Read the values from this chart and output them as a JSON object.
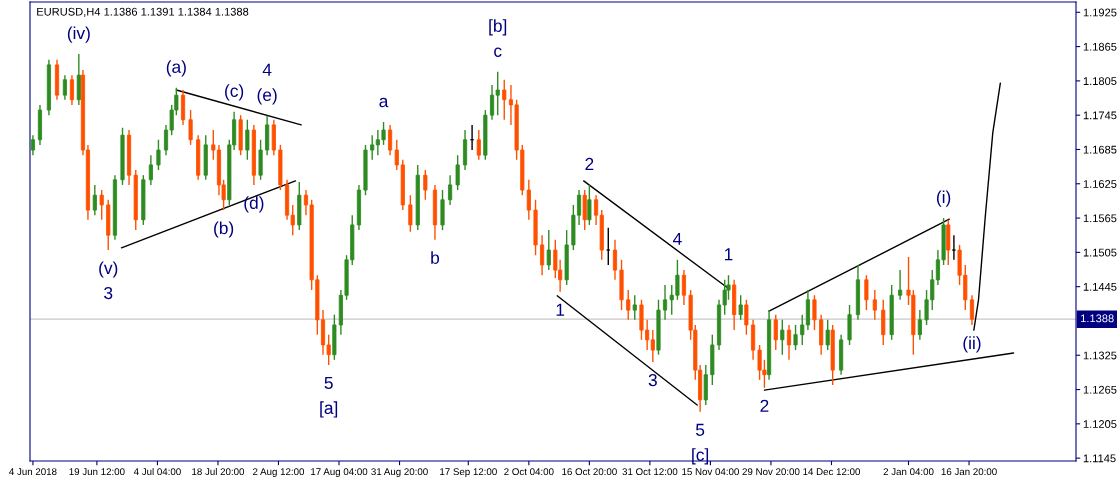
{
  "chart_data": {
    "type": "candlestick",
    "title": "EURUSD,H4 1.1386 1.1391 1.1384 1.1388",
    "xlim": [
      "2018-06-03T07:00",
      "2019-02-11T18:00"
    ],
    "ylim": [
      1.114,
      1.1943
    ],
    "xticks": [
      {
        "value": "2018-06-04T00:00",
        "label": "4 Jun 2018"
      },
      {
        "value": "2018-06-19T12:00",
        "label": "19 Jun 12:00"
      },
      {
        "value": "2018-07-04T04:00",
        "label": "4 Jul 04:00"
      },
      {
        "value": "2018-07-18T20:00",
        "label": "18 Jul 20:00"
      },
      {
        "value": "2018-08-02T12:00",
        "label": "2 Aug 12:00"
      },
      {
        "value": "2018-08-17T04:00",
        "label": "17 Aug 04:00"
      },
      {
        "value": "2018-08-31T20:00",
        "label": "31 Aug 20:00"
      },
      {
        "value": "2018-09-17T12:00",
        "label": "17 Sep 12:00"
      },
      {
        "value": "2018-10-02T04:00",
        "label": "2 Oct 04:00"
      },
      {
        "value": "2018-10-16T20:00",
        "label": "16 Oct 20:00"
      },
      {
        "value": "2018-10-31T12:00",
        "label": "31 Oct 12:00"
      },
      {
        "value": "2018-11-15T04:00",
        "label": "15 Nov 04:00"
      },
      {
        "value": "2018-11-29T20:00",
        "label": "29 Nov 20:00"
      },
      {
        "value": "2018-12-14T12:00",
        "label": "14 Dec 12:00"
      },
      {
        "value": "2019-01-02T04:00",
        "label": "2 Jan 04:00"
      },
      {
        "value": "2019-01-16T20:00",
        "label": "16 Jan 20:00"
      }
    ],
    "yticks": [
      1.1145,
      1.1205,
      1.1265,
      1.1325,
      1.1445,
      1.1505,
      1.1565,
      1.1625,
      1.1685,
      1.1745,
      1.1805,
      1.1865,
      1.1925
    ],
    "x": [
      "2018-06-04T00:00",
      "2018-06-05T17:00",
      "2018-06-07T21:00",
      "2018-06-09T20:00",
      "2018-06-11T18:00",
      "2018-06-13T11:00",
      "2018-06-15T03:00",
      "2018-06-16T03:00",
      "2018-06-17T08:00",
      "2018-06-19T00:00",
      "2018-06-20T16:00",
      "2018-06-22T06:00",
      "2018-06-23T21:00",
      "2018-06-25T17:00",
      "2018-06-27T07:00",
      "2018-06-28T22:00",
      "2018-06-30T18:00",
      "2018-07-02T14:00",
      "2018-07-04T10:00",
      "2018-07-06T06:00",
      "2018-07-07T15:00",
      "2018-07-08T18:00",
      "2018-07-10T09:00",
      "2018-07-12T05:00",
      "2018-07-14T01:00",
      "2018-07-15T21:00",
      "2018-07-17T17:00",
      "2018-07-19T02:00",
      "2018-07-20T05:00",
      "2018-07-21T14:00",
      "2018-07-22T18:00",
      "2018-07-24T08:00",
      "2018-07-25T23:00",
      "2018-07-27T13:00",
      "2018-07-29T04:00",
      "2018-07-30T18:00",
      "2018-08-01T09:00",
      "2018-08-02T23:00",
      "2018-08-04T14:00",
      "2018-08-05T23:00",
      "2018-08-07T13:00",
      "2018-08-09T04:00",
      "2018-08-10T13:00",
      "2018-08-11T22:00",
      "2018-08-13T07:00",
      "2018-08-14T16:00",
      "2018-08-16T01:00",
      "2018-08-17T15:00",
      "2018-08-19T00:00",
      "2018-08-20T09:00",
      "2018-08-22T00:00",
      "2018-08-23T14:00",
      "2018-08-25T05:00",
      "2018-08-26T14:00",
      "2018-08-27T23:00",
      "2018-08-29T13:00",
      "2018-08-31T04:00",
      "2018-09-01T15:00",
      "2018-09-03T11:00",
      "2018-09-05T06:00",
      "2018-09-07T02:00",
      "2018-09-09T10:00",
      "2018-09-11T06:00",
      "2018-09-13T02:00",
      "2018-09-14T22:00",
      "2018-09-16T17:00",
      "2018-09-18T10:00",
      "2018-09-20T01:00",
      "2018-09-21T15:00",
      "2018-09-23T06:00",
      "2018-09-24T15:00",
      "2018-09-26T05:00",
      "2018-09-27T20:00",
      "2018-09-29T05:00",
      "2018-09-30T14:00",
      "2018-10-02T04:00",
      "2018-10-03T19:00",
      "2018-10-05T09:00",
      "2018-10-07T00:00",
      "2018-10-08T14:00",
      "2018-10-09T18:00",
      "2018-10-11T08:00",
      "2018-10-12T23:00",
      "2018-10-14T08:00",
      "2018-10-15T17:00",
      "2018-10-16T20:00",
      "2018-10-18T11:00",
      "2018-10-19T20:00",
      "2018-10-21T10:00",
      "2018-10-23T01:00",
      "2018-10-24T15:00",
      "2018-10-26T06:00",
      "2018-10-27T20:00",
      "2018-10-29T11:00",
      "2018-10-30T20:00",
      "2018-11-01T05:00",
      "2018-11-02T14:00",
      "2018-11-04T04:00",
      "2018-11-05T19:00",
      "2018-11-07T04:00",
      "2018-11-08T18:00",
      "2018-11-10T09:00",
      "2018-11-11T12:00",
      "2018-11-12T16:00",
      "2018-11-14T01:00",
      "2018-11-15T15:00",
      "2018-11-17T06:00",
      "2018-11-18T15:00",
      "2018-11-19T13:00",
      "2018-11-20T22:00",
      "2018-11-22T12:00",
      "2018-11-23T21:00",
      "2018-11-25T12:00",
      "2018-11-27T02:00",
      "2018-11-28T06:00",
      "2018-11-29T09:00",
      "2018-12-01T00:00",
      "2018-12-02T14:00",
      "2018-12-04T05:00",
      "2018-12-05T19:00",
      "2018-12-07T10:00",
      "2018-12-08T19:00",
      "2018-12-10T09:00",
      "2018-12-12T00:00",
      "2018-12-13T14:00",
      "2018-12-14T19:00",
      "2018-12-16T20:00",
      "2018-12-18T21:00",
      "2018-12-20T22:00",
      "2018-12-22T23:00",
      "2018-12-25T00:00",
      "2018-12-27T01:00",
      "2018-12-29T02:00",
      "2018-12-31T03:00",
      "2019-01-02T04:00",
      "2019-01-03T08:00",
      "2019-01-04T22:00",
      "2019-01-06T13:00",
      "2019-01-07T22:00",
      "2019-01-09T07:00",
      "2019-01-10T16:00",
      "2019-01-11T19:00",
      "2019-01-13T04:00",
      "2019-01-14T13:00",
      "2019-01-15T22:00",
      "2019-01-17T13:00"
    ],
    "ohlc": [
      [
        1.1684,
        1.171,
        1.1675,
        1.1702
      ],
      [
        1.1702,
        1.1763,
        1.1693,
        1.1754
      ],
      [
        1.1754,
        1.1842,
        1.1745,
        1.1833
      ],
      [
        1.1833,
        1.1842,
        1.1772,
        1.178
      ],
      [
        1.178,
        1.1815,
        1.1772,
        1.1807
      ],
      [
        1.1807,
        1.1815,
        1.1763,
        1.1772
      ],
      [
        1.1772,
        1.1852,
        1.1763,
        1.1815
      ],
      [
        1.1815,
        1.1824,
        1.1675,
        1.1684
      ],
      [
        1.1684,
        1.1693,
        1.1562,
        1.1579
      ],
      [
        1.1579,
        1.1623,
        1.157,
        1.1605
      ],
      [
        1.1605,
        1.1614,
        1.1562,
        1.1588
      ],
      [
        1.1588,
        1.1597,
        1.1509,
        1.1535
      ],
      [
        1.1535,
        1.164,
        1.1527,
        1.1632
      ],
      [
        1.1632,
        1.1723,
        1.1623,
        1.171
      ],
      [
        1.171,
        1.1719,
        1.1623,
        1.164
      ],
      [
        1.164,
        1.1649,
        1.1544,
        1.1562
      ],
      [
        1.1562,
        1.164,
        1.1553,
        1.1632
      ],
      [
        1.1632,
        1.1675,
        1.1623,
        1.1658
      ],
      [
        1.1658,
        1.1702,
        1.1649,
        1.1684
      ],
      [
        1.1684,
        1.1728,
        1.1675,
        1.1719
      ],
      [
        1.1719,
        1.1763,
        1.171,
        1.1754
      ],
      [
        1.1754,
        1.1793,
        1.1745,
        1.178
      ],
      [
        1.178,
        1.1789,
        1.1728,
        1.1737
      ],
      [
        1.1737,
        1.1754,
        1.1693,
        1.1702
      ],
      [
        1.1702,
        1.171,
        1.1632,
        1.164
      ],
      [
        1.164,
        1.171,
        1.1632,
        1.1693
      ],
      [
        1.1693,
        1.1719,
        1.1667,
        1.1684
      ],
      [
        1.1684,
        1.1693,
        1.1605,
        1.1623
      ],
      [
        1.1623,
        1.1632,
        1.1579,
        1.1597
      ],
      [
        1.1597,
        1.1702,
        1.1588,
        1.1693
      ],
      [
        1.1693,
        1.1751,
        1.1684,
        1.1737
      ],
      [
        1.1737,
        1.1745,
        1.1675,
        1.1684
      ],
      [
        1.1684,
        1.1737,
        1.1667,
        1.1719
      ],
      [
        1.1719,
        1.1728,
        1.1623,
        1.164
      ],
      [
        1.164,
        1.1702,
        1.1632,
        1.1684
      ],
      [
        1.1684,
        1.1744,
        1.1675,
        1.1728
      ],
      [
        1.1728,
        1.1737,
        1.1675,
        1.1684
      ],
      [
        1.1684,
        1.1693,
        1.1614,
        1.1623
      ],
      [
        1.1623,
        1.1632,
        1.1562,
        1.157
      ],
      [
        1.157,
        1.1588,
        1.1535,
        1.1553
      ],
      [
        1.1553,
        1.1628,
        1.1544,
        1.1605
      ],
      [
        1.1605,
        1.1614,
        1.157,
        1.1588
      ],
      [
        1.1588,
        1.1597,
        1.1439,
        1.1457
      ],
      [
        1.1457,
        1.1465,
        1.1361,
        1.1387
      ],
      [
        1.1387,
        1.1404,
        1.1326,
        1.1343
      ],
      [
        1.1343,
        1.1361,
        1.1308,
        1.1326
      ],
      [
        1.1326,
        1.1396,
        1.1317,
        1.1378
      ],
      [
        1.1378,
        1.1439,
        1.1361,
        1.143
      ],
      [
        1.143,
        1.15,
        1.1422,
        1.1492
      ],
      [
        1.1492,
        1.157,
        1.1483,
        1.1553
      ],
      [
        1.1553,
        1.1623,
        1.1544,
        1.1614
      ],
      [
        1.1614,
        1.1693,
        1.1605,
        1.1684
      ],
      [
        1.1684,
        1.171,
        1.1667,
        1.1693
      ],
      [
        1.1693,
        1.1719,
        1.1675,
        1.1702
      ],
      [
        1.1702,
        1.1733,
        1.1693,
        1.1719
      ],
      [
        1.1719,
        1.1728,
        1.1675,
        1.1684
      ],
      [
        1.1684,
        1.1702,
        1.1649,
        1.1658
      ],
      [
        1.1658,
        1.1667,
        1.1579,
        1.1588
      ],
      [
        1.1588,
        1.1605,
        1.1541,
        1.1553
      ],
      [
        1.1553,
        1.1658,
        1.1544,
        1.164
      ],
      [
        1.164,
        1.1649,
        1.1597,
        1.1614
      ],
      [
        1.1614,
        1.1623,
        1.1527,
        1.1553
      ],
      [
        1.1553,
        1.1614,
        1.1544,
        1.1597
      ],
      [
        1.1597,
        1.164,
        1.1588,
        1.1623
      ],
      [
        1.1623,
        1.1675,
        1.1614,
        1.1658
      ],
      [
        1.1658,
        1.1719,
        1.1649,
        1.1702
      ],
      [
        1.1702,
        1.1728,
        1.1684,
        1.1702
      ],
      [
        1.1702,
        1.1719,
        1.1667,
        1.1675
      ],
      [
        1.1675,
        1.1754,
        1.1667,
        1.1745
      ],
      [
        1.1745,
        1.1798,
        1.1737,
        1.178
      ],
      [
        1.178,
        1.1821,
        1.1745,
        1.1789
      ],
      [
        1.1789,
        1.1807,
        1.1737,
        1.1772
      ],
      [
        1.1772,
        1.1798,
        1.1728,
        1.1763
      ],
      [
        1.1763,
        1.1772,
        1.1667,
        1.1684
      ],
      [
        1.1684,
        1.1693,
        1.1605,
        1.1614
      ],
      [
        1.1614,
        1.1632,
        1.1562,
        1.1579
      ],
      [
        1.1579,
        1.1597,
        1.15,
        1.1518
      ],
      [
        1.1518,
        1.1535,
        1.1465,
        1.1483
      ],
      [
        1.1483,
        1.1544,
        1.1474,
        1.1509
      ],
      [
        1.1509,
        1.1527,
        1.146,
        1.1474
      ],
      [
        1.1474,
        1.1492,
        1.1436,
        1.1457
      ],
      [
        1.1457,
        1.1544,
        1.1448,
        1.1518
      ],
      [
        1.1518,
        1.1588,
        1.1509,
        1.157
      ],
      [
        1.157,
        1.1614,
        1.1553,
        1.1605
      ],
      [
        1.1605,
        1.1614,
        1.1544,
        1.1562
      ],
      [
        1.1562,
        1.1623,
        1.1553,
        1.1597
      ],
      [
        1.1597,
        1.1605,
        1.1553,
        1.157
      ],
      [
        1.157,
        1.1579,
        1.1492,
        1.1509
      ],
      [
        1.1509,
        1.1548,
        1.1483,
        1.1509
      ],
      [
        1.1509,
        1.1527,
        1.1457,
        1.1474
      ],
      [
        1.1474,
        1.1492,
        1.1404,
        1.1422
      ],
      [
        1.1422,
        1.1439,
        1.1387,
        1.1404
      ],
      [
        1.1404,
        1.143,
        1.1387,
        1.1413
      ],
      [
        1.1413,
        1.1422,
        1.1352,
        1.1369
      ],
      [
        1.1369,
        1.1387,
        1.1334,
        1.1352
      ],
      [
        1.1352,
        1.1369,
        1.1313,
        1.1334
      ],
      [
        1.1334,
        1.1422,
        1.1326,
        1.1404
      ],
      [
        1.1404,
        1.1448,
        1.1387,
        1.1422
      ],
      [
        1.1422,
        1.1448,
        1.1396,
        1.143
      ],
      [
        1.143,
        1.1492,
        1.1422,
        1.1465
      ],
      [
        1.1465,
        1.1474,
        1.1413,
        1.143
      ],
      [
        1.143,
        1.1439,
        1.1352,
        1.1369
      ],
      [
        1.1369,
        1.1378,
        1.1282,
        1.1299
      ],
      [
        1.1299,
        1.1308,
        1.1226,
        1.1247
      ],
      [
        1.1247,
        1.1308,
        1.1238,
        1.1291
      ],
      [
        1.1291,
        1.1361,
        1.1273,
        1.1343
      ],
      [
        1.1343,
        1.1422,
        1.1334,
        1.1413
      ],
      [
        1.1413,
        1.1457,
        1.1396,
        1.1439
      ],
      [
        1.1439,
        1.1465,
        1.1422,
        1.1448
      ],
      [
        1.1448,
        1.1457,
        1.1369,
        1.1396
      ],
      [
        1.1396,
        1.143,
        1.1387,
        1.1413
      ],
      [
        1.1413,
        1.1422,
        1.1361,
        1.1378
      ],
      [
        1.1378,
        1.1387,
        1.1317,
        1.1334
      ],
      [
        1.1334,
        1.1343,
        1.1282,
        1.1299
      ],
      [
        1.1299,
        1.1317,
        1.1268,
        1.1291
      ],
      [
        1.1291,
        1.1404,
        1.1282,
        1.1387
      ],
      [
        1.1387,
        1.1396,
        1.1334,
        1.1352
      ],
      [
        1.1352,
        1.1387,
        1.1326,
        1.1369
      ],
      [
        1.1369,
        1.1378,
        1.1317,
        1.1343
      ],
      [
        1.1343,
        1.1378,
        1.1334,
        1.1361
      ],
      [
        1.1361,
        1.1396,
        1.1343,
        1.1378
      ],
      [
        1.1378,
        1.1439,
        1.1369,
        1.1422
      ],
      [
        1.1422,
        1.143,
        1.1369,
        1.1387
      ],
      [
        1.1387,
        1.1396,
        1.1326,
        1.1343
      ],
      [
        1.1343,
        1.1387,
        1.1334,
        1.1369
      ],
      [
        1.1369,
        1.1378,
        1.1273,
        1.1299
      ],
      [
        1.1299,
        1.1361,
        1.1291,
        1.1352
      ],
      [
        1.1352,
        1.1413,
        1.1343,
        1.1396
      ],
      [
        1.1396,
        1.1483,
        1.1387,
        1.1457
      ],
      [
        1.1457,
        1.1465,
        1.1404,
        1.1422
      ],
      [
        1.1422,
        1.1439,
        1.1387,
        1.1404
      ],
      [
        1.1404,
        1.1422,
        1.1343,
        1.1361
      ],
      [
        1.1361,
        1.1448,
        1.1352,
        1.143
      ],
      [
        1.143,
        1.1474,
        1.1422,
        1.1439
      ],
      [
        1.1439,
        1.1497,
        1.1413,
        1.143
      ],
      [
        1.143,
        1.1439,
        1.1326,
        1.1361
      ],
      [
        1.1361,
        1.1404,
        1.1352,
        1.1387
      ],
      [
        1.1387,
        1.1439,
        1.1378,
        1.1422
      ],
      [
        1.1422,
        1.1474,
        1.1404,
        1.1457
      ],
      [
        1.1457,
        1.1509,
        1.1448,
        1.1492
      ],
      [
        1.1492,
        1.1565,
        1.1483,
        1.1553
      ],
      [
        1.1553,
        1.1562,
        1.1483,
        1.1509
      ],
      [
        1.1509,
        1.1535,
        1.1492,
        1.1509
      ],
      [
        1.1509,
        1.1518,
        1.1448,
        1.1465
      ],
      [
        1.1465,
        1.1483,
        1.1404,
        1.1422
      ],
      [
        1.1422,
        1.143,
        1.1378,
        1.1388
      ]
    ],
    "series": [
      {
        "type": "line",
        "color": "#000000",
        "x": [
          "2018-07-08T18:00",
          "2018-08-08T00:00"
        ],
        "values": [
          1.1789,
          1.1728
        ]
      },
      {
        "type": "line",
        "color": "#000000",
        "x": [
          "2018-06-25T11:00",
          "2018-08-06T15:00"
        ],
        "values": [
          1.1513,
          1.163
        ]
      },
      {
        "type": "line",
        "color": "#000000",
        "x": [
          "2018-10-15T11:00",
          "2018-11-19T07:00"
        ],
        "values": [
          1.163,
          1.1443
        ]
      },
      {
        "type": "line",
        "color": "#000000",
        "x": [
          "2018-10-09T01:00",
          "2018-11-11T23:00"
        ],
        "values": [
          1.1429,
          1.1238
        ]
      },
      {
        "type": "line",
        "color": "#000000",
        "x": [
          "2018-11-29T09:00",
          "2019-01-12T01:00"
        ],
        "values": [
          1.1402,
          1.1563
        ]
      },
      {
        "type": "line",
        "color": "#000000",
        "x": [
          "2018-11-28T06:00",
          "2019-01-27T15:00"
        ],
        "values": [
          1.1264,
          1.1329
        ]
      },
      {
        "type": "line",
        "color": "#000000",
        "x": [
          "2019-01-18T00:00",
          "2019-01-19T03:00",
          "2019-01-20T18:00",
          "2019-01-22T14:00",
          "2019-01-24T10:00"
        ],
        "values": [
          1.1369,
          1.1422,
          1.1566,
          1.1714,
          1.1801
        ]
      }
    ],
    "ref_lines": [
      {
        "axis": "y",
        "value": 1.1388,
        "label": "1.1388",
        "color": "#c8c8c8"
      }
    ],
    "annotations": [
      {
        "text": "(iv)",
        "x": "2018-06-15T03:00",
        "y": 1.1852
      },
      {
        "text": "(v)",
        "x": "2018-06-22T06:00",
        "y": 1.1509
      },
      {
        "text": "3",
        "x": "2018-06-22T06:00",
        "y": 1.1509
      },
      {
        "text": "(a)",
        "x": "2018-07-08T18:00",
        "y": 1.1793
      },
      {
        "text": "(b)",
        "x": "2018-07-20T05:00",
        "y": 1.1579
      },
      {
        "text": "(c)",
        "x": "2018-07-22T18:00",
        "y": 1.1751
      },
      {
        "text": "(d)",
        "x": "2018-07-27T13:00",
        "y": 1.1623
      },
      {
        "text": "(e)",
        "x": "2018-07-30T18:00",
        "y": 1.1744
      },
      {
        "text": "4",
        "x": "2018-07-30T18:00",
        "y": 1.1744
      },
      {
        "text": "5",
        "x": "2018-08-14T16:00",
        "y": 1.1308
      },
      {
        "text": "[a]",
        "x": "2018-08-14T16:00",
        "y": 1.1308
      },
      {
        "text": "a",
        "x": "2018-08-27T23:00",
        "y": 1.1733
      },
      {
        "text": "b",
        "x": "2018-09-09T10:00",
        "y": 1.1527
      },
      {
        "text": "c",
        "x": "2018-09-24T15:00",
        "y": 1.1821
      },
      {
        "text": "[b]",
        "x": "2018-09-24T15:00",
        "y": 1.1821
      },
      {
        "text": "1",
        "x": "2018-10-09T18:00",
        "y": 1.1436
      },
      {
        "text": "2",
        "x": "2018-10-16T20:00",
        "y": 1.1623
      },
      {
        "text": "3",
        "x": "2018-11-01T05:00",
        "y": 1.1313
      },
      {
        "text": "4",
        "x": "2018-11-07T04:00",
        "y": 1.1492
      },
      {
        "text": "5",
        "x": "2018-11-12T16:00",
        "y": 1.1226
      },
      {
        "text": "[c]",
        "x": "2018-11-12T16:00",
        "y": 1.1226
      },
      {
        "text": "1",
        "x": "2018-11-19T13:00",
        "y": 1.1465
      },
      {
        "text": "2",
        "x": "2018-11-28T06:00",
        "y": 1.1268
      },
      {
        "text": "(i)",
        "x": "2019-01-10T16:00",
        "y": 1.1565
      },
      {
        "text": "(ii)",
        "x": "2019-01-17T13:00",
        "y": 1.1378
      }
    ]
  }
}
